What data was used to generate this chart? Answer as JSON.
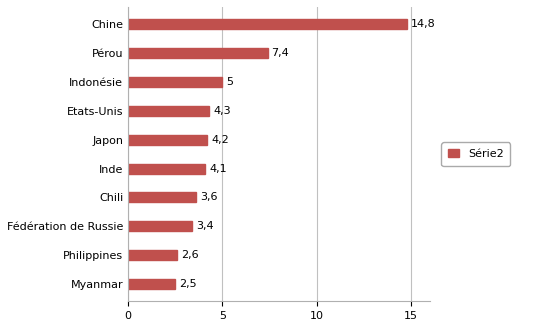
{
  "categories": [
    "Myanmar",
    "Philippines",
    "Fédération de Russie",
    "Chili",
    "Inde",
    "Japon",
    "Etats-Unis",
    "Indonésie",
    "Pérou",
    "Chine"
  ],
  "values": [
    2.5,
    2.6,
    3.4,
    3.6,
    4.1,
    4.2,
    4.3,
    5.0,
    7.4,
    14.8
  ],
  "labels": [
    "2,5",
    "2,6",
    "3,4",
    "3,6",
    "4,1",
    "4,2",
    "4,3",
    "5",
    "7,4",
    "14,8"
  ],
  "bar_color": "#C0504D",
  "legend_label": "Série2",
  "xlim": [
    0,
    16
  ],
  "xticks": [
    0,
    5,
    10,
    15
  ],
  "background_color": "#ffffff",
  "grid_color": "#c0c0c0",
  "label_fontsize": 8,
  "tick_fontsize": 8
}
